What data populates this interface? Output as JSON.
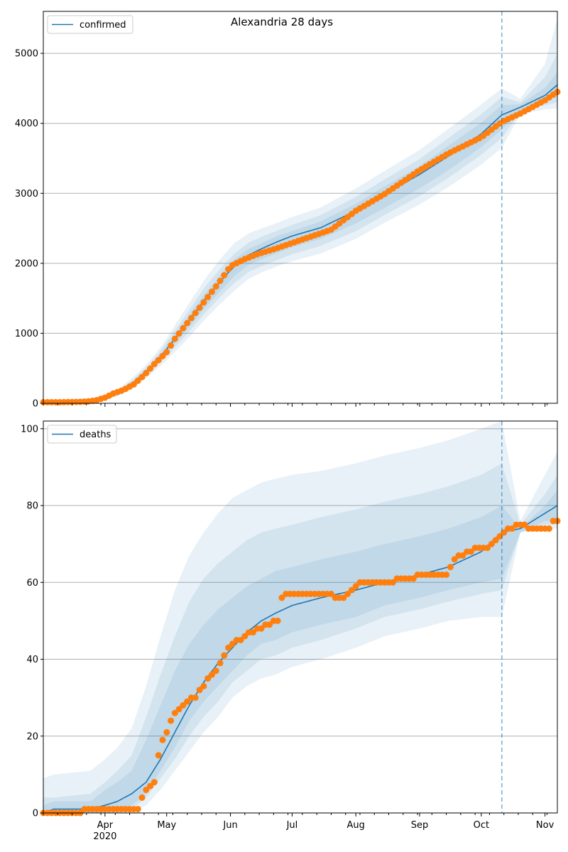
{
  "figure_title": "Alexandria 28 days",
  "chart_data": [
    {
      "type": "line",
      "name": "confirmed",
      "ylim": [
        0,
        5600
      ],
      "yticks": [
        0,
        1000,
        2000,
        3000,
        4000,
        5000
      ],
      "xlim": [
        "2020-03-02",
        "2020-11-07"
      ],
      "forecast_start": "2020-10-11",
      "grid": "horizontal",
      "legend": {
        "location": "top-left",
        "entries": [
          "confirmed"
        ]
      },
      "model": {
        "x": [
          "2020-03-02",
          "2020-03-15",
          "2020-03-25",
          "2020-04-01",
          "2020-04-08",
          "2020-04-15",
          "2020-04-22",
          "2020-04-29",
          "2020-05-06",
          "2020-05-13",
          "2020-05-20",
          "2020-05-27",
          "2020-06-03",
          "2020-06-10",
          "2020-06-17",
          "2020-06-24",
          "2020-07-01",
          "2020-07-15",
          "2020-08-01",
          "2020-08-15",
          "2020-09-01",
          "2020-09-15",
          "2020-10-01",
          "2020-10-11",
          "2020-10-20",
          "2020-11-01",
          "2020-11-07"
        ],
        "y": [
          15,
          15,
          20,
          60,
          160,
          300,
          480,
          700,
          960,
          1230,
          1500,
          1740,
          1960,
          2120,
          2220,
          2310,
          2390,
          2510,
          2750,
          2990,
          3270,
          3530,
          3850,
          4120,
          4230,
          4400,
          4550
        ],
        "bands": [
          {
            "lo": [
              15,
              15,
              15,
              45,
              110,
              220,
              380,
              560,
              760,
              980,
              1210,
              1420,
              1610,
              1780,
              1880,
              1960,
              2030,
              2140,
              2350,
              2580,
              2840,
              3090,
              3410,
              3650,
              4130,
              4200,
              4210
            ],
            "hi": [
              15,
              15,
              25,
              80,
              210,
              380,
              580,
              840,
              1160,
              1480,
              1790,
              2060,
              2290,
              2430,
              2510,
              2580,
              2660,
              2800,
              3070,
              3320,
              3620,
              3920,
              4270,
              4500,
              4350,
              4850,
              5500
            ]
          },
          {
            "lo": [
              15,
              15,
              17,
              50,
              125,
              245,
              410,
              610,
              830,
              1060,
              1300,
              1520,
              1720,
              1880,
              1970,
              2050,
              2130,
              2250,
              2460,
              2690,
              2960,
              3220,
              3550,
              3790,
              4160,
              4260,
              4300
            ],
            "hi": [
              15,
              15,
              23,
              72,
              190,
              350,
              540,
              790,
              1080,
              1380,
              1680,
              1920,
              2140,
              2300,
              2390,
              2470,
              2550,
              2690,
              2950,
              3200,
              3490,
              3790,
              4130,
              4380,
              4300,
              4660,
              5000
            ]
          },
          {
            "lo": [
              15,
              15,
              18,
              54,
              138,
              268,
              440,
              650,
              890,
              1130,
              1380,
              1600,
              1820,
              1980,
              2070,
              2150,
              2230,
              2350,
              2570,
              2790,
              3070,
              3330,
              3660,
              3910,
              4190,
              4320,
              4400
            ],
            "hi": [
              15,
              15,
              22,
              66,
              175,
              325,
              510,
              745,
              1020,
              1310,
              1580,
              1830,
              2060,
              2210,
              2300,
              2390,
              2460,
              2600,
              2850,
              3100,
              3390,
              3680,
              4010,
              4260,
              4270,
              4510,
              4730
            ]
          }
        ]
      },
      "observed": {
        "x": [
          "2020-03-02",
          "2020-03-10",
          "2020-03-20",
          "2020-03-25",
          "2020-03-28",
          "2020-04-01",
          "2020-04-05",
          "2020-04-10",
          "2020-04-15",
          "2020-04-20",
          "2020-04-25",
          "2020-05-01",
          "2020-05-05",
          "2020-05-10",
          "2020-05-15",
          "2020-05-20",
          "2020-05-25",
          "2020-05-29",
          "2020-06-01",
          "2020-06-08",
          "2020-06-15",
          "2020-06-22",
          "2020-07-01",
          "2020-07-10",
          "2020-07-20",
          "2020-08-01",
          "2020-08-15",
          "2020-09-01",
          "2020-09-15",
          "2020-10-01",
          "2020-10-11",
          "2020-10-20",
          "2020-11-01",
          "2020-11-07"
        ],
        "y": [
          15,
          15,
          20,
          30,
          45,
          80,
          140,
          190,
          270,
          400,
          560,
          730,
          920,
          1110,
          1290,
          1480,
          1670,
          1830,
          1960,
          2060,
          2140,
          2200,
          2290,
          2380,
          2480,
          2750,
          2990,
          3330,
          3570,
          3800,
          4020,
          4140,
          4330,
          4450
        ]
      }
    },
    {
      "type": "line",
      "name": "deaths",
      "ylim": [
        0,
        102
      ],
      "yticks": [
        0,
        20,
        40,
        60,
        80,
        100
      ],
      "xlim": [
        "2020-03-02",
        "2020-11-07"
      ],
      "xticks": [
        "Apr",
        "May",
        "Jun",
        "Jul",
        "Aug",
        "Sep",
        "Oct",
        "Nov"
      ],
      "xtick_year": "2020",
      "forecast_start": "2020-10-11",
      "grid": "horizontal",
      "legend": {
        "location": "top-left",
        "entries": [
          "deaths"
        ]
      },
      "model": {
        "x": [
          "2020-03-02",
          "2020-03-07",
          "2020-03-25",
          "2020-04-01",
          "2020-04-07",
          "2020-04-14",
          "2020-04-21",
          "2020-04-28",
          "2020-05-05",
          "2020-05-12",
          "2020-05-19",
          "2020-05-26",
          "2020-06-02",
          "2020-06-09",
          "2020-06-16",
          "2020-06-23",
          "2020-07-01",
          "2020-07-15",
          "2020-08-01",
          "2020-08-15",
          "2020-09-01",
          "2020-09-15",
          "2020-10-01",
          "2020-10-11",
          "2020-10-20",
          "2020-11-01",
          "2020-11-07"
        ],
        "y": [
          0,
          1,
          1,
          2,
          3,
          5,
          8,
          14,
          21,
          28,
          34,
          39,
          43,
          47,
          50,
          52,
          54,
          56,
          58,
          60,
          62,
          64,
          68,
          73,
          74,
          78,
          80
        ],
        "bands": [
          {
            "lo": [
              0,
              0,
              0,
              0,
              0,
              0,
              2,
              6,
              11,
              16,
              21,
              25,
              30,
              33,
              35,
              36,
              38,
              40,
              43,
              46,
              48,
              50,
              51,
              51,
              73,
              74,
              74
            ],
            "hi": [
              9,
              10,
              11,
              14,
              17,
              22,
              33,
              46,
              58,
              67,
              73,
              78,
              82,
              84,
              86,
              87,
              88,
              89,
              91,
              93,
              95,
              97,
              100,
              102,
              76,
              88,
              94
            ]
          },
          {
            "lo": [
              0,
              0,
              0,
              0,
              0,
              1,
              4,
              9,
              14,
              20,
              25,
              29,
              34,
              37,
              40,
              41,
              43,
              45,
              48,
              51,
              53,
              55,
              57,
              58,
              73,
              75,
              75
            ],
            "hi": [
              4,
              4,
              5,
              8,
              11,
              15,
              25,
              36,
              46,
              55,
              61,
              65,
              68,
              71,
              73,
              74,
              75,
              77,
              79,
              81,
              83,
              85,
              88,
              91,
              75,
              83,
              88
            ]
          },
          {
            "lo": [
              0,
              0,
              0,
              0,
              1,
              2,
              5,
              11,
              17,
              24,
              29,
              33,
              37,
              41,
              44,
              45,
              47,
              49,
              51,
              54,
              56,
              58,
              60,
              61,
              73,
              76,
              76
            ],
            "hi": [
              2,
              3,
              3,
              6,
              8,
              11,
              19,
              28,
              37,
              44,
              49,
              53,
              56,
              59,
              61,
              63,
              64,
              66,
              68,
              70,
              72,
              74,
              77,
              80,
              74,
              80,
              84
            ]
          }
        ]
      },
      "observed": {
        "x": [
          "2020-03-02",
          "2020-04-10",
          "2020-04-18",
          "2020-04-20",
          "2020-04-25",
          "2020-04-28",
          "2020-05-01",
          "2020-05-05",
          "2020-05-10",
          "2020-05-15",
          "2020-05-20",
          "2020-05-25",
          "2020-05-29",
          "2020-06-01",
          "2020-06-05",
          "2020-06-10",
          "2020-06-15",
          "2020-06-20",
          "2020-06-24",
          "2020-06-25",
          "2020-07-01",
          "2020-07-10",
          "2020-07-15",
          "2020-07-25",
          "2020-08-01",
          "2020-08-05",
          "2020-08-15",
          "2020-08-25",
          "2020-08-28",
          "2020-09-01",
          "2020-09-14",
          "2020-09-18",
          "2020-09-25",
          "2020-10-01",
          "2020-10-05",
          "2020-10-08",
          "2020-10-11",
          "2020-10-20",
          "2020-10-25",
          "2020-11-01",
          "2020-11-03",
          "2020-11-05",
          "2020-11-07"
        ],
        "y": [
          0,
          1,
          1,
          6,
          8,
          18,
          21,
          26,
          29,
          30,
          34,
          37,
          41,
          44,
          45,
          47,
          48,
          49,
          50,
          56,
          57,
          57,
          57,
          56,
          59,
          60,
          60,
          61,
          61,
          62,
          62,
          66,
          68,
          69,
          69,
          71,
          73,
          75,
          74,
          74,
          74,
          76,
          76
        ]
      }
    }
  ]
}
